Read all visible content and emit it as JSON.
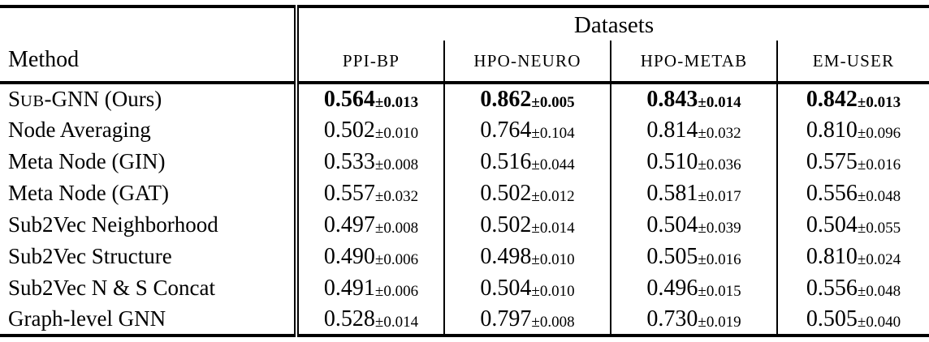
{
  "table": {
    "group_header": "Datasets",
    "method_header": "Method",
    "columns": [
      "PPI-BP",
      "HPO-NEURO",
      "HPO-METAB",
      "EM-USER"
    ],
    "pm_sign": "±",
    "rows": [
      {
        "method": [
          {
            "t": "S"
          },
          {
            "t": "UB",
            "sc": true
          },
          {
            "t": "-GNN (Ours)"
          }
        ],
        "bold": true,
        "values": [
          [
            "0.564",
            "0.013"
          ],
          [
            "0.862",
            "0.005"
          ],
          [
            "0.843",
            "0.014"
          ],
          [
            "0.842",
            "0.013"
          ]
        ]
      },
      {
        "method": [
          {
            "t": "Node Averaging"
          }
        ],
        "bold": false,
        "values": [
          [
            "0.502",
            "0.010"
          ],
          [
            "0.764",
            "0.104"
          ],
          [
            "0.814",
            "0.032"
          ],
          [
            "0.810",
            "0.096"
          ]
        ]
      },
      {
        "method": [
          {
            "t": "Meta Node (GIN)"
          }
        ],
        "bold": false,
        "values": [
          [
            "0.533",
            "0.008"
          ],
          [
            "0.516",
            "0.044"
          ],
          [
            "0.510",
            "0.036"
          ],
          [
            "0.575",
            "0.016"
          ]
        ]
      },
      {
        "method": [
          {
            "t": "Meta Node (GAT)"
          }
        ],
        "bold": false,
        "values": [
          [
            "0.557",
            "0.032"
          ],
          [
            "0.502",
            "0.012"
          ],
          [
            "0.581",
            "0.017"
          ],
          [
            "0.556",
            "0.048"
          ]
        ]
      },
      {
        "method": [
          {
            "t": "Sub2Vec Neighborhood"
          }
        ],
        "bold": false,
        "values": [
          [
            "0.497",
            "0.008"
          ],
          [
            "0.502",
            "0.014"
          ],
          [
            "0.504",
            "0.039"
          ],
          [
            "0.504",
            "0.055"
          ]
        ]
      },
      {
        "method": [
          {
            "t": "Sub2Vec Structure"
          }
        ],
        "bold": false,
        "values": [
          [
            "0.490",
            "0.006"
          ],
          [
            "0.498",
            "0.010"
          ],
          [
            "0.505",
            "0.016"
          ],
          [
            "0.810",
            "0.024"
          ]
        ]
      },
      {
        "method": [
          {
            "t": "Sub2Vec N & S Concat"
          }
        ],
        "bold": false,
        "values": [
          [
            "0.491",
            "0.006"
          ],
          [
            "0.504",
            "0.010"
          ],
          [
            "0.496",
            "0.015"
          ],
          [
            "0.556",
            "0.048"
          ]
        ]
      },
      {
        "method": [
          {
            "t": "Graph-level GNN"
          }
        ],
        "bold": false,
        "values": [
          [
            "0.528",
            "0.014"
          ],
          [
            "0.797",
            "0.008"
          ],
          [
            "0.730",
            "0.019"
          ],
          [
            "0.505",
            "0.040"
          ]
        ]
      }
    ]
  }
}
